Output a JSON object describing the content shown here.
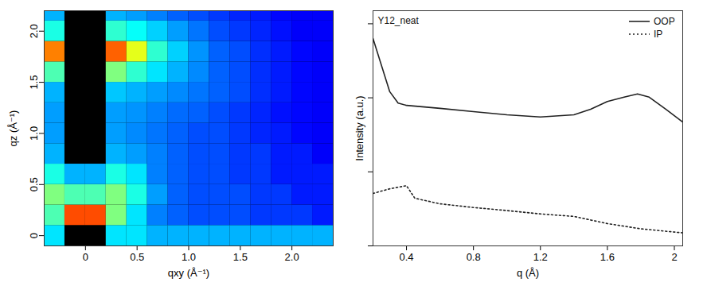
{
  "chart_data": [
    {
      "type": "heatmap",
      "xlabel": "qxy (Å⁻¹)",
      "ylabel": "qz (Å⁻¹)",
      "xlim": [
        -0.4,
        2.4
      ],
      "ylim": [
        -0.1,
        2.2
      ],
      "xticks": [
        0,
        0.5,
        {
          "value": 1,
          "label": "1.0"
        },
        1.5,
        {
          "value": 2,
          "label": "2.0"
        }
      ],
      "yticks": [
        0,
        0.5,
        {
          "value": 1,
          "label": "1.0"
        },
        1.5,
        {
          "value": 2,
          "label": "2.0"
        }
      ],
      "zlim": [
        0,
        1
      ],
      "x_edges": [
        -0.4,
        -0.2,
        0,
        0.2,
        0.4,
        0.6,
        0.8,
        1.0,
        1.2,
        1.4,
        1.6,
        1.8,
        2.0,
        2.2,
        2.4
      ],
      "y_edges": [
        -0.1,
        0.1,
        0.3,
        0.5,
        0.7,
        0.9,
        1.1,
        1.3,
        1.5,
        1.7,
        1.9,
        2.1,
        2.2
      ],
      "values": [
        [
          0.35,
          null,
          null,
          0.35,
          0.35,
          0.3,
          0.3,
          0.3,
          0.3,
          0.3,
          0.3,
          0.3,
          0.3,
          0.3
        ],
        [
          0.45,
          0.8,
          0.8,
          0.5,
          0.35,
          0.25,
          0.22,
          0.2,
          0.2,
          0.2,
          0.18,
          0.18,
          0.18,
          0.15
        ],
        [
          0.5,
          0.45,
          0.45,
          0.5,
          0.4,
          0.28,
          0.22,
          0.2,
          0.2,
          0.2,
          0.18,
          0.18,
          0.15,
          0.15
        ],
        [
          0.4,
          0.3,
          0.3,
          0.4,
          0.35,
          0.25,
          0.22,
          0.2,
          0.2,
          0.18,
          0.18,
          0.15,
          0.15,
          0.15
        ],
        [
          0.3,
          null,
          null,
          0.3,
          0.28,
          0.25,
          0.22,
          0.2,
          0.2,
          0.18,
          0.18,
          0.15,
          0.15,
          0.12
        ],
        [
          0.28,
          null,
          null,
          0.28,
          0.26,
          0.24,
          0.22,
          0.2,
          0.2,
          0.18,
          0.16,
          0.15,
          0.13,
          0.12
        ],
        [
          0.28,
          null,
          null,
          0.28,
          0.27,
          0.25,
          0.23,
          0.22,
          0.2,
          0.18,
          0.16,
          0.14,
          0.13,
          0.12
        ],
        [
          0.3,
          null,
          null,
          0.32,
          0.3,
          0.28,
          0.26,
          0.24,
          0.22,
          0.2,
          0.17,
          0.15,
          0.13,
          0.12
        ],
        [
          0.45,
          null,
          null,
          0.5,
          0.42,
          0.35,
          0.3,
          0.26,
          0.22,
          0.2,
          0.17,
          0.15,
          0.13,
          0.12
        ],
        [
          0.75,
          null,
          null,
          0.78,
          0.6,
          0.42,
          0.33,
          0.27,
          0.22,
          0.2,
          0.17,
          0.15,
          0.13,
          0.12
        ],
        [
          0.4,
          null,
          null,
          0.42,
          0.38,
          0.33,
          0.28,
          0.24,
          0.2,
          0.18,
          0.16,
          0.14,
          0.12,
          0.12
        ],
        [
          0.3,
          null,
          null,
          0.3,
          0.28,
          0.25,
          0.22,
          0.2,
          0.18,
          0.16,
          0.15,
          0.13,
          0.12,
          0.12
        ]
      ]
    },
    {
      "type": "line",
      "title": "Y12_neat",
      "xlabel": "q (Å)",
      "ylabel": "Intensity (a.u.)",
      "log": "y",
      "xlim": [
        0.2,
        2.05
      ],
      "ylim": [
        1,
        1500
      ],
      "xticks": [
        0.4,
        0.8,
        1.2,
        1.6,
        2
      ],
      "yticks": [
        1,
        10,
        100,
        1000
      ],
      "tick_labels": "x",
      "legend": "top-right",
      "series": [
        {
          "name": "OOP",
          "color": "#222222",
          "line_style": "solid",
          "x": [
            0.2,
            0.3,
            0.35,
            0.4,
            0.6,
            0.8,
            1.0,
            1.2,
            1.4,
            1.5,
            1.6,
            1.7,
            1.78,
            1.85,
            1.95,
            2.05
          ],
          "values": [
            633,
            121,
            85,
            79,
            72,
            65,
            59,
            55,
            59,
            70,
            89,
            102,
            113,
            102,
            70,
            47
          ]
        },
        {
          "name": "IP",
          "color": "#222222",
          "line_style": "dotted",
          "x": [
            0.2,
            0.25,
            0.3,
            0.35,
            0.4,
            0.45,
            0.6,
            0.8,
            1.0,
            1.2,
            1.4,
            1.6,
            1.8,
            2.05
          ],
          "values": [
            5.1,
            5.5,
            5.9,
            6.2,
            6.5,
            4.4,
            3.7,
            3.3,
            3.0,
            2.7,
            2.5,
            2.0,
            1.7,
            1.5
          ]
        }
      ]
    }
  ]
}
